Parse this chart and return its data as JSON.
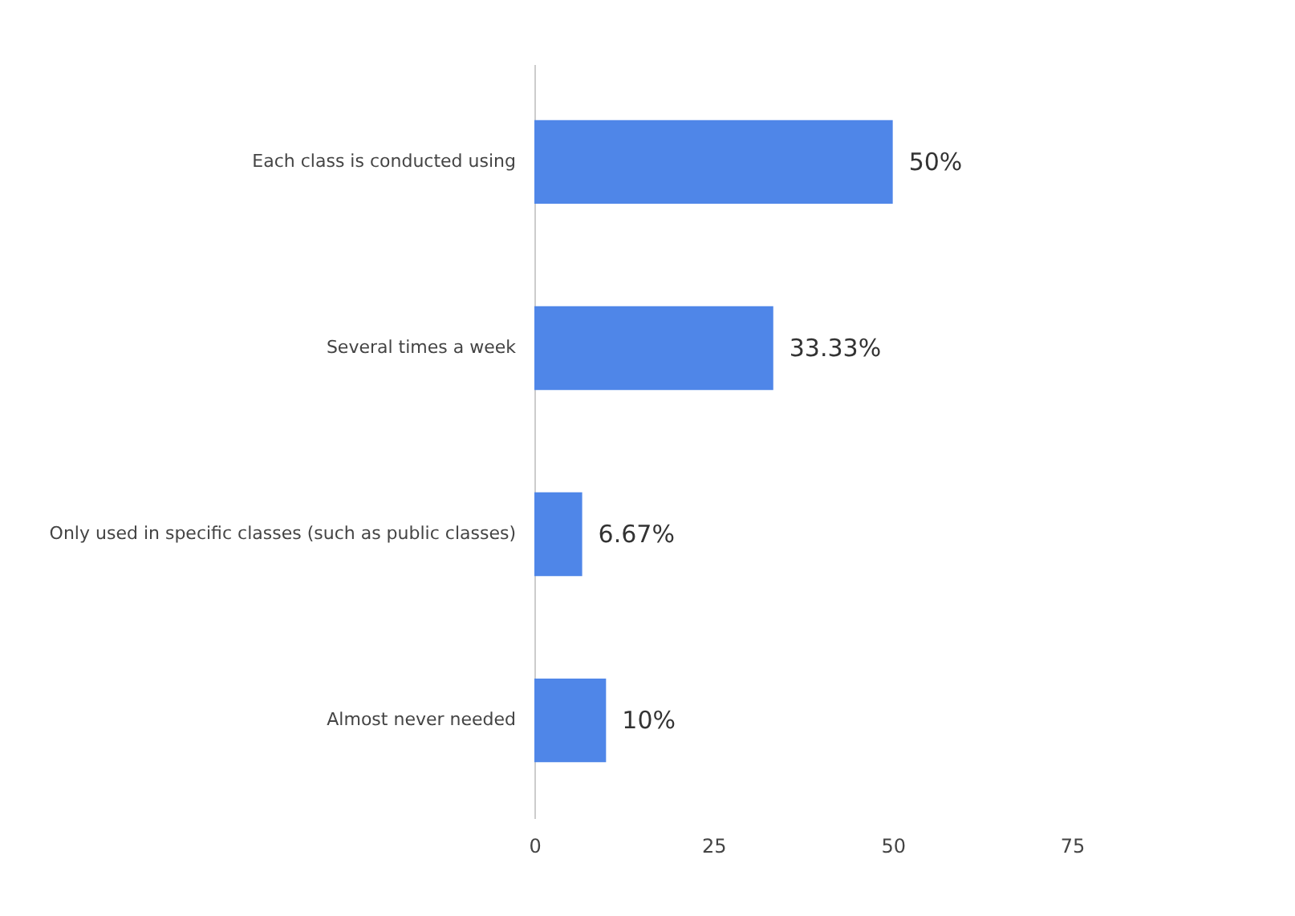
{
  "chart_data": {
    "type": "bar",
    "orientation": "horizontal",
    "categories": [
      "Each class is conducted using",
      "Several times a week",
      "Only used in specific classes (such as public classes)",
      "Almost never needed"
    ],
    "values": [
      50,
      33.33,
      6.67,
      10
    ],
    "value_labels": [
      "50%",
      "33.33%",
      "6.67%",
      "10%"
    ],
    "color": "#4f86e8",
    "xlim": [
      0,
      75
    ],
    "xticks": [
      0,
      25,
      50,
      75
    ],
    "grid": false
  }
}
